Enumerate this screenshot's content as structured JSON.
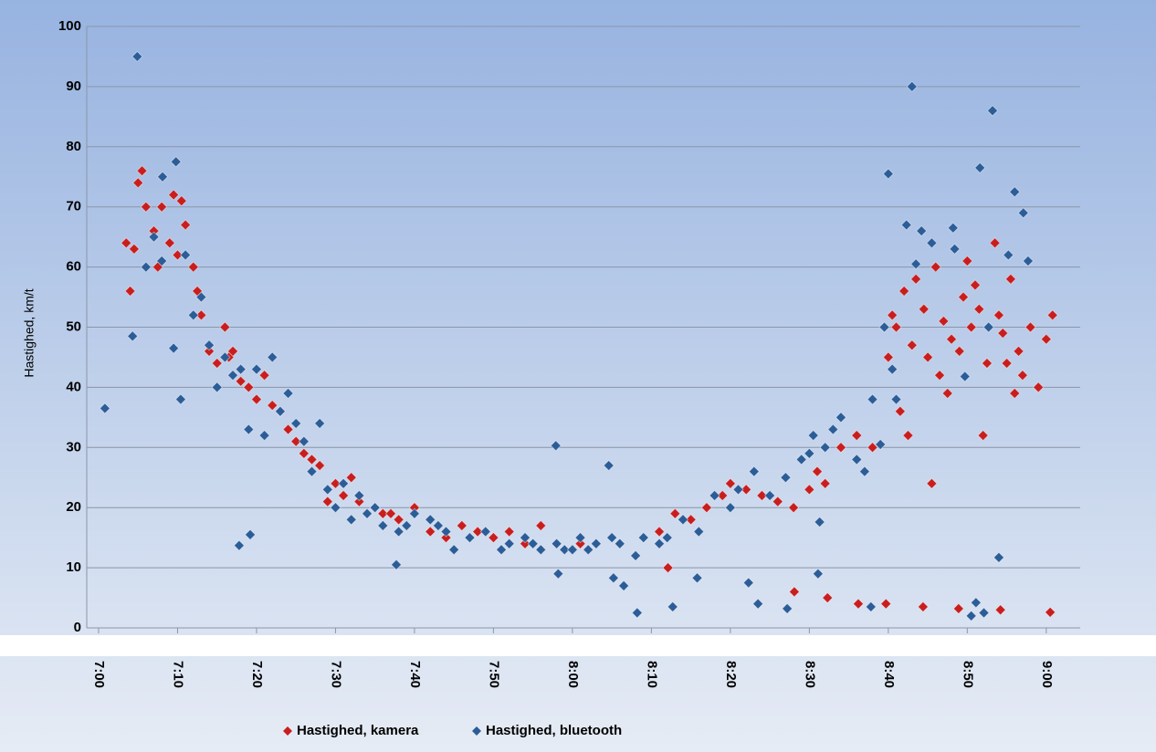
{
  "chart_data": {
    "type": "scatter",
    "y_label": "Hastighed, km/t",
    "xlim": [
      418.5,
      544.3
    ],
    "ylim": [
      0,
      100
    ],
    "xticks": [
      {
        "value": 420,
        "label": "7:00"
      },
      {
        "value": 430,
        "label": "7:10"
      },
      {
        "value": 440,
        "label": "7:20"
      },
      {
        "value": 450,
        "label": "7:30"
      },
      {
        "value": 460,
        "label": "7:40"
      },
      {
        "value": 470,
        "label": "7:50"
      },
      {
        "value": 480,
        "label": "8:00"
      },
      {
        "value": 490,
        "label": "8:10"
      },
      {
        "value": 500,
        "label": "8:20"
      },
      {
        "value": 510,
        "label": "8:30"
      },
      {
        "value": 520,
        "label": "8:40"
      },
      {
        "value": 530,
        "label": "8:50"
      },
      {
        "value": 540,
        "label": "9:00"
      }
    ],
    "yticks": [
      0,
      10,
      20,
      30,
      40,
      50,
      60,
      70,
      80,
      90,
      100
    ],
    "grid": true,
    "legend": "bottom",
    "series": [
      {
        "name": "Hastighed, kamera",
        "color": "#c81e1e",
        "x": [
          423.5,
          424,
          424.5,
          425,
          425.5,
          426,
          427,
          427.5,
          428,
          429,
          429.5,
          430,
          430.5,
          431,
          432,
          432.5,
          433,
          434,
          435,
          436,
          436.5,
          437,
          438,
          439,
          440,
          441,
          442,
          443,
          444,
          445,
          446,
          447,
          448,
          449,
          450,
          451,
          452,
          453,
          455,
          456,
          457,
          458,
          460,
          462,
          464,
          466,
          468,
          470,
          472,
          474,
          476,
          478,
          481,
          486,
          489,
          491,
          492.1,
          493,
          495,
          497,
          499,
          500,
          502,
          504,
          506,
          508,
          508.1,
          510,
          511,
          512,
          512.3,
          514,
          516,
          516.2,
          518,
          519.7,
          520,
          520.5,
          521,
          521.5,
          522,
          522.5,
          523,
          523.5,
          524.4,
          524.5,
          525,
          525.5,
          526,
          526.5,
          527,
          527.5,
          528,
          528.9,
          529,
          529.5,
          530,
          530.5,
          531,
          531.5,
          532,
          532.5,
          533.5,
          534,
          534.2,
          534.5,
          535,
          535.5,
          536,
          536.5,
          537,
          538,
          539,
          540,
          540.5,
          540.8
        ],
        "values": [
          64,
          56,
          63,
          74,
          76,
          70,
          66,
          60,
          70,
          64,
          72,
          62,
          71,
          67,
          60,
          56,
          52,
          46,
          44,
          50,
          45,
          46,
          41,
          40,
          38,
          42,
          37,
          36,
          33,
          31,
          29,
          28,
          27,
          21,
          24,
          22,
          25,
          21,
          20,
          19,
          19,
          18,
          20,
          16,
          15,
          17,
          16,
          15,
          16,
          14,
          17,
          14,
          14,
          14,
          15,
          16,
          10,
          19,
          18,
          20,
          22,
          24,
          23,
          22,
          21,
          20,
          6,
          23,
          26,
          24,
          5,
          30,
          32,
          4,
          30,
          4,
          45,
          52,
          50,
          36,
          56,
          32,
          47,
          58,
          3.5,
          53,
          45,
          24,
          60,
          42,
          51,
          39,
          48,
          3.2,
          46,
          55,
          61,
          50,
          57,
          53,
          32,
          44,
          64,
          52,
          3,
          49,
          44,
          58,
          39,
          46,
          42,
          50,
          40,
          48,
          2.6,
          52
        ]
      },
      {
        "name": "Hastighed, bluetooth",
        "color": "#2b5d98",
        "x": [
          420.8,
          424.3,
          424.9,
          426,
          427,
          428,
          428.1,
          429.5,
          429.8,
          430.4,
          431,
          432,
          433,
          434,
          435,
          436,
          437,
          437.8,
          438,
          439,
          439.2,
          440,
          441,
          442,
          443,
          444,
          445,
          446,
          447,
          448,
          449,
          450,
          451,
          452,
          453,
          454,
          455,
          456,
          457.7,
          458,
          459,
          460,
          462,
          463,
          464,
          465,
          467,
          469,
          471,
          472,
          474,
          475,
          476,
          477.9,
          478,
          478.2,
          479,
          480,
          481,
          482,
          483,
          484.6,
          485,
          485.2,
          486,
          486.5,
          488,
          488.2,
          489,
          491,
          492,
          492.7,
          494,
          495.8,
          496,
          498,
          500,
          501,
          502.3,
          503,
          503.5,
          505,
          507,
          507.2,
          509,
          510,
          510.5,
          511.1,
          511.3,
          512,
          513,
          514,
          516,
          517,
          517.8,
          518,
          519,
          519.5,
          520,
          520.5,
          521,
          522.3,
          523,
          523.5,
          524.2,
          525.5,
          528.2,
          528.4,
          529.7,
          530.5,
          531.1,
          531.6,
          532.1,
          532.7,
          533.2,
          534,
          535.2,
          536,
          537.1,
          537.7
        ],
        "values": [
          36.5,
          48.5,
          95,
          60,
          65,
          61,
          75,
          46.5,
          77.5,
          38,
          62,
          52,
          55,
          47,
          40,
          45,
          42,
          13.7,
          43,
          33,
          15.5,
          43,
          32,
          45,
          36,
          39,
          34,
          31,
          26,
          34,
          23,
          20,
          24,
          18,
          22,
          19,
          20,
          17,
          10.5,
          16,
          17,
          19,
          18,
          17,
          16,
          13,
          15,
          16,
          13,
          14,
          15,
          14,
          13,
          30.3,
          14,
          9,
          13,
          13,
          15,
          13,
          14,
          27,
          15,
          8.3,
          14,
          7,
          12,
          2.5,
          15,
          14,
          15,
          3.5,
          18,
          8.3,
          16,
          22,
          20,
          23,
          7.5,
          26,
          4,
          22,
          25,
          3.2,
          28,
          29,
          32,
          9,
          17.6,
          30,
          33,
          35,
          28,
          26,
          3.5,
          38,
          30.5,
          50,
          75.5,
          43,
          38,
          67,
          90,
          60.5,
          66,
          64,
          66.5,
          63,
          41.8,
          2,
          4.2,
          76.5,
          2.5,
          50,
          86,
          11.7,
          62,
          72.5,
          69,
          61
        ]
      }
    ]
  }
}
